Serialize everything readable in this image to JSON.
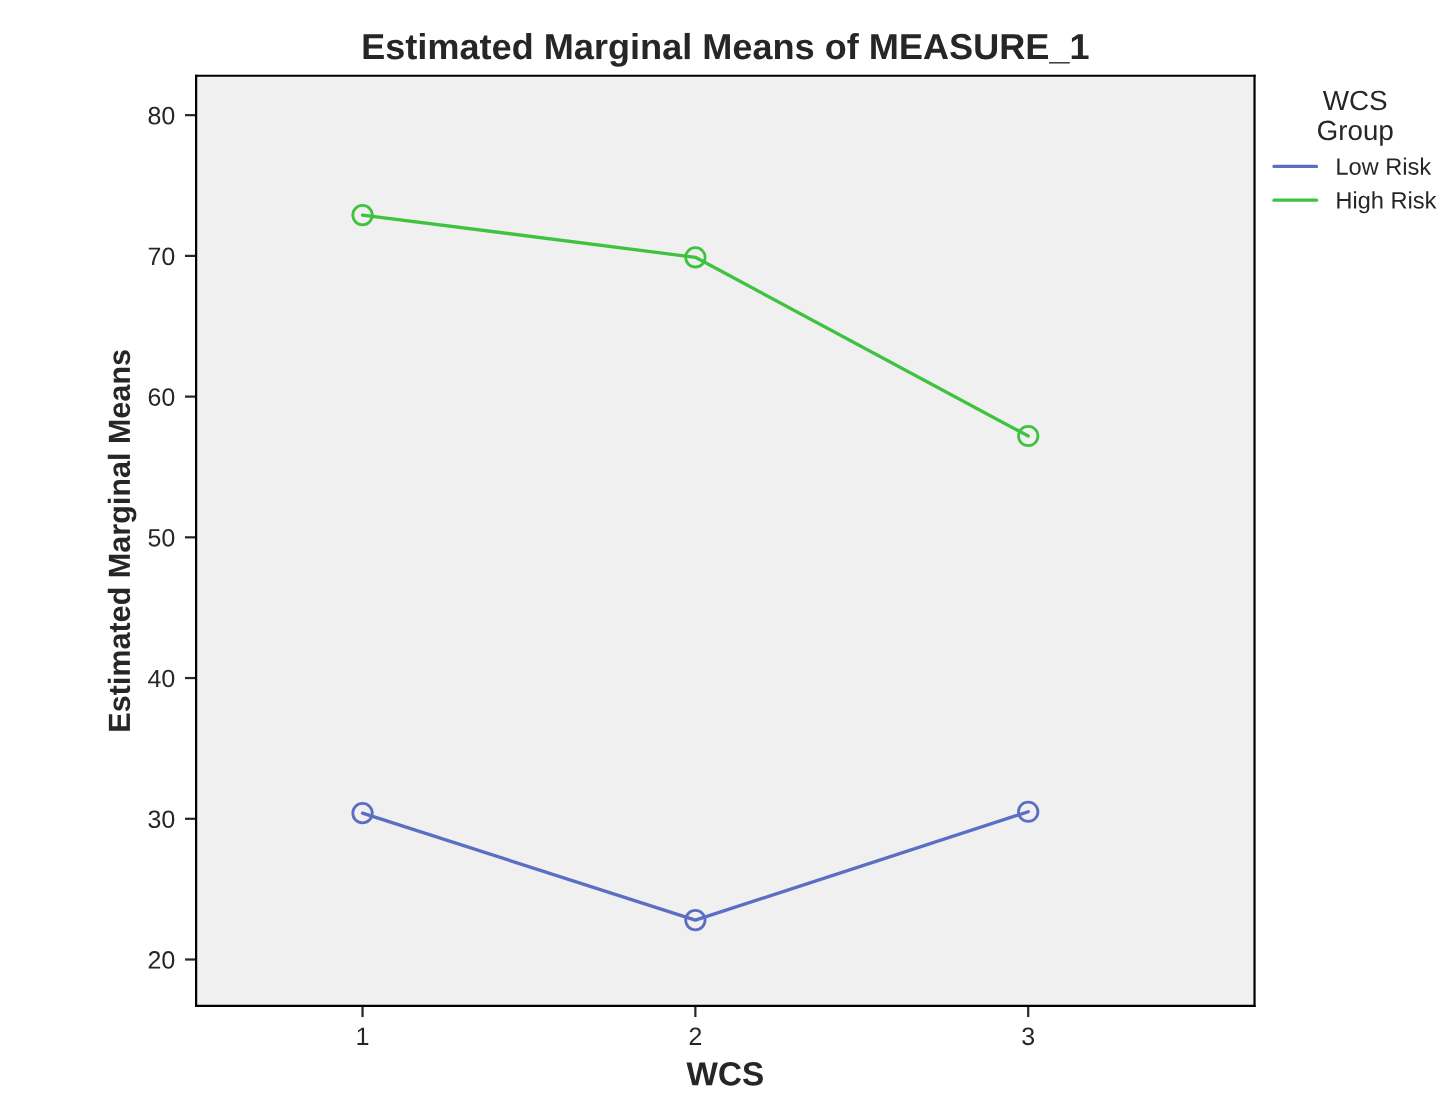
{
  "chart_data": {
    "type": "line",
    "title": "Estimated Marginal Means of MEASURE_1",
    "xlabel": "WCS",
    "ylabel": "Estimated Marginal Means",
    "legend_title": "WCS\nGroup",
    "x": [
      1,
      2,
      3
    ],
    "series": [
      {
        "name": "Low Risk",
        "color": "#5b6ec4",
        "values": [
          30.4,
          22.8,
          30.5
        ]
      },
      {
        "name": "High Risk",
        "color": "#3fc23f",
        "values": [
          72.9,
          69.9,
          57.2
        ]
      }
    ],
    "xlim": [
      0.5,
      3.68
    ],
    "xticks": [
      1,
      2,
      3
    ],
    "ylim": [
      16.7,
      82.8
    ],
    "yticks": [
      20,
      30,
      40,
      50,
      60,
      70,
      80
    ],
    "grid": false,
    "legend": "top right",
    "marker": "circle",
    "line_style": "solid"
  }
}
